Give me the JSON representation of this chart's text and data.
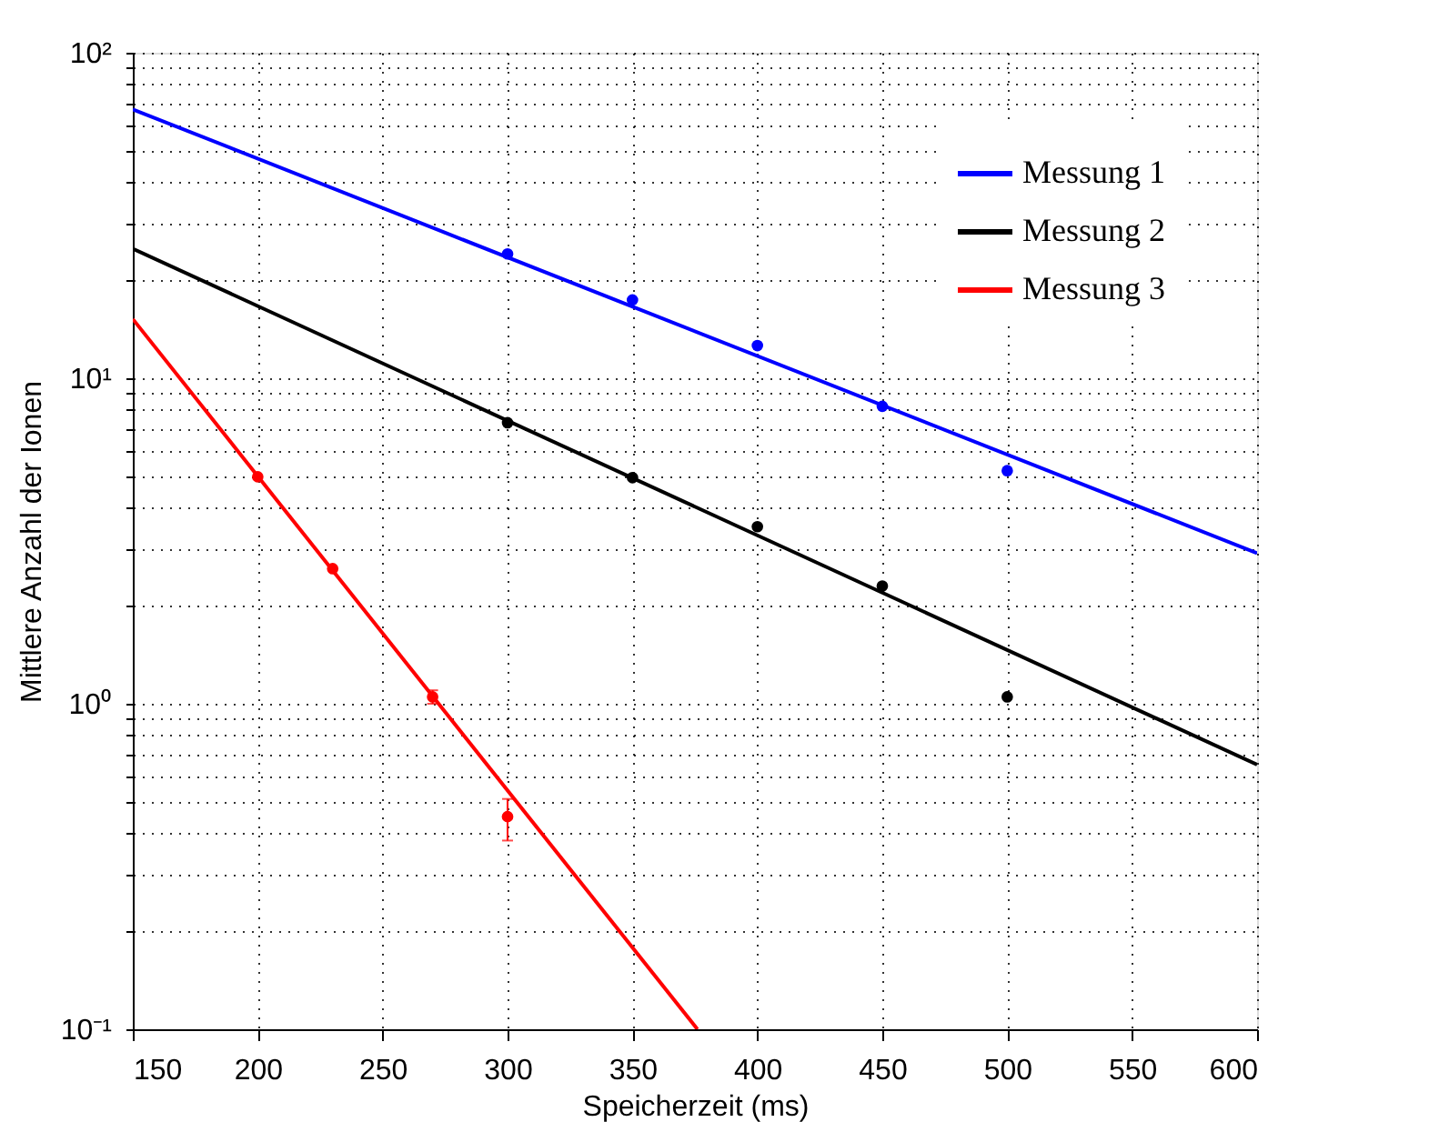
{
  "chart_data": {
    "type": "line",
    "xlabel": "Speicherzeit (ms)",
    "ylabel": "Mittlere Anzahl der Ionen",
    "log": "y",
    "grid": true,
    "legend": "top right",
    "xlim": [
      150,
      600
    ],
    "xticks": [
      150,
      200,
      250,
      300,
      350,
      400,
      450,
      500,
      550,
      600
    ],
    "ylim": [
      0.1,
      100
    ],
    "yticks": [
      {
        "value": 0.1,
        "label": "10⁻¹"
      },
      {
        "value": 0.2,
        "label": null
      },
      {
        "value": 0.3,
        "label": null
      },
      {
        "value": 0.4,
        "label": null
      },
      {
        "value": 0.5,
        "label": null
      },
      {
        "value": 0.6,
        "label": null
      },
      {
        "value": 0.7,
        "label": null
      },
      {
        "value": 0.8,
        "label": null
      },
      {
        "value": 0.9,
        "label": null
      },
      {
        "value": 1,
        "label": "10⁰"
      },
      {
        "value": 2,
        "label": null
      },
      {
        "value": 3,
        "label": null
      },
      {
        "value": 4,
        "label": null
      },
      {
        "value": 5,
        "label": null
      },
      {
        "value": 6,
        "label": null
      },
      {
        "value": 7,
        "label": null
      },
      {
        "value": 8,
        "label": null
      },
      {
        "value": 9,
        "label": null
      },
      {
        "value": 10,
        "label": "10¹"
      },
      {
        "value": 20,
        "label": null
      },
      {
        "value": 30,
        "label": null
      },
      {
        "value": 40,
        "label": null
      },
      {
        "value": 50,
        "label": null
      },
      {
        "value": 60,
        "label": null
      },
      {
        "value": 70,
        "label": null
      },
      {
        "value": 80,
        "label": null
      },
      {
        "value": 90,
        "label": null
      },
      {
        "value": 100,
        "label": "10²"
      }
    ],
    "series": [
      {
        "name": "Messung 1",
        "color": "#0000ff",
        "x": [
          150,
          600
        ],
        "values": [
          67,
          2.9
        ]
      },
      {
        "name": "Messung 2",
        "color": "#000000",
        "x": [
          150,
          600
        ],
        "values": [
          25,
          0.65
        ]
      },
      {
        "name": "Messung 3",
        "color": "#ff0000",
        "x": [
          150,
          376
        ],
        "values": [
          15.2,
          0.1
        ]
      },
      {
        "type": "scatter",
        "color": "#0000ff",
        "marker": "circle",
        "x": [
          300,
          350,
          400,
          450,
          500
        ],
        "values": [
          24.1,
          17.4,
          12.6,
          8.2,
          5.2
        ]
      },
      {
        "type": "scatter",
        "color": "#000000",
        "marker": "circle",
        "x": [
          300,
          350,
          400,
          450,
          500
        ],
        "values": [
          7.3,
          4.95,
          3.5,
          2.3,
          1.05
        ]
      },
      {
        "type": "scatter",
        "color": "#ff0000",
        "marker": "circle",
        "x": [
          200,
          230,
          270,
          300
        ],
        "values": [
          4.98,
          2.6,
          1.05,
          0.45
        ],
        "errors": [
          null,
          null,
          [
            1.0,
            1.1
          ],
          [
            0.38,
            0.51
          ]
        ]
      }
    ]
  }
}
